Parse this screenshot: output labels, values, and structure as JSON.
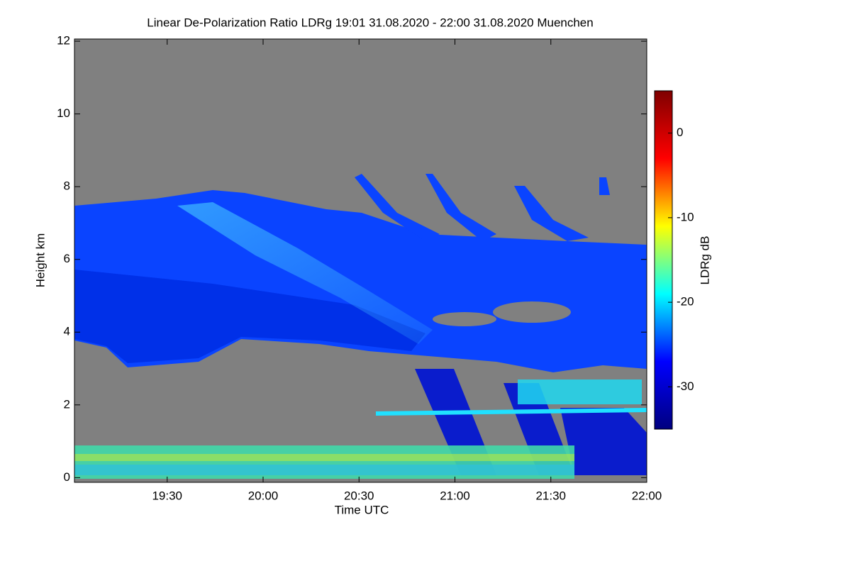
{
  "chart_data": {
    "type": "heatmap",
    "title": "Linear De-Polarization Ratio LDRg   19:01 31.08.2020 - 22:00 31.08.2020 Muenchen",
    "x_label": "Time UTC",
    "y_label": "Height km",
    "xlim": [
      "19:01",
      "22:00"
    ],
    "xticks": [
      "19:30",
      "20:00",
      "20:30",
      "21:00",
      "21:30",
      "22:00"
    ],
    "ylim": [
      -0.13,
      12.06
    ],
    "yticks": [
      0,
      2,
      4,
      6,
      8,
      10,
      12
    ],
    "colorbar_label": "LDRg dB",
    "clim": [
      -35,
      5
    ],
    "cticks": [
      0,
      -10,
      -20,
      -30
    ],
    "colormap": [
      "#00007f",
      "#0000ff",
      "#00ffff",
      "#ffff00",
      "#ff0000",
      "#7f0000"
    ],
    "no_data_color": "#808080"
  }
}
